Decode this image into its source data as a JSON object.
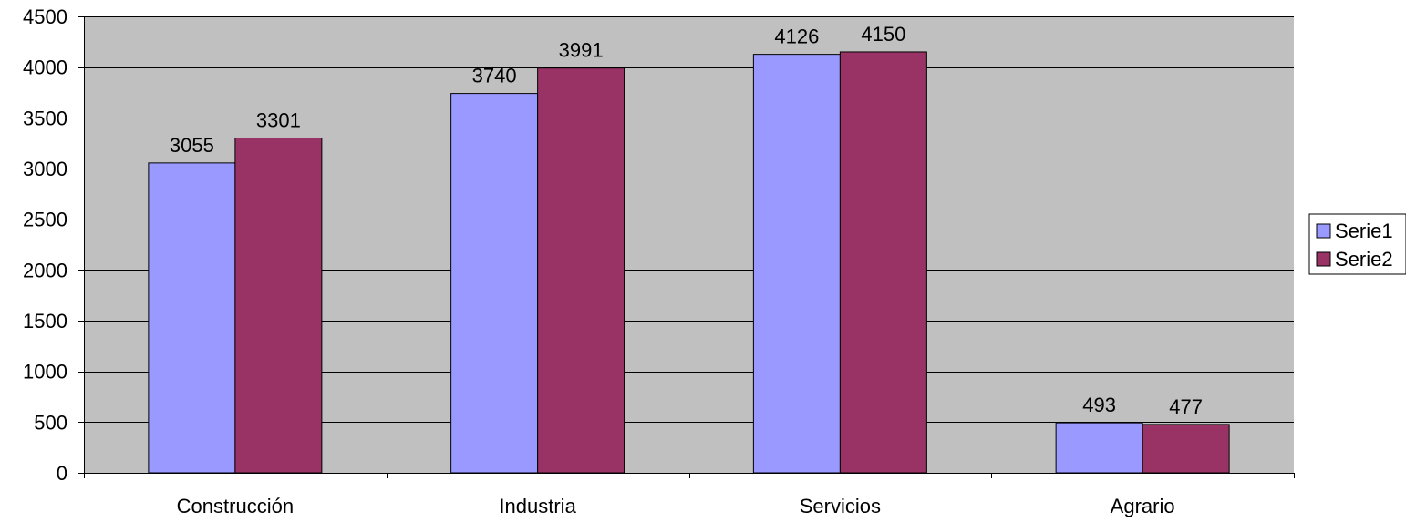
{
  "chart_data": {
    "type": "bar",
    "title": "",
    "xlabel": "",
    "ylabel": "",
    "categories": [
      "Construcción",
      "Industria",
      "Servicios",
      "Agrario"
    ],
    "series": [
      {
        "name": "Serie1",
        "values": [
          3055,
          3740,
          4126,
          493
        ],
        "color": "#9999FF"
      },
      {
        "name": "Serie2",
        "values": [
          3301,
          3991,
          4150,
          477
        ],
        "color": "#993366"
      }
    ],
    "ylim": [
      0,
      4500
    ],
    "yticks": [
      0,
      500,
      1000,
      1500,
      2000,
      2500,
      3000,
      3500,
      4000,
      4500
    ],
    "grid": true,
    "data_labels": true,
    "legend_position": "right",
    "plot_background": "#C0C0C0"
  }
}
